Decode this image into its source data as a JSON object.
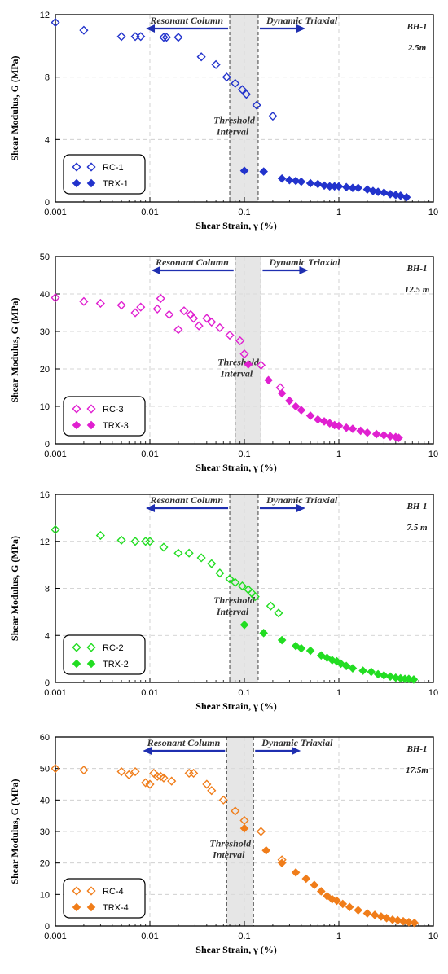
{
  "chart_data": [
    {
      "type": "scatter",
      "xscale": "log",
      "xlim": [
        0.001,
        10
      ],
      "ylim": [
        0,
        12
      ],
      "yticks": [
        0,
        4,
        8,
        12
      ],
      "xticks": [
        0.001,
        0.01,
        0.1,
        1,
        10
      ],
      "xtick_labels": [
        "0.001",
        "0.01",
        "0.1",
        "1",
        "10"
      ],
      "xlabel": "Shear Strain, γ (%)",
      "ylabel": "Shear Modulus, G (MPa)",
      "color": "#2233cc",
      "label_left": "Resonant Column",
      "label_right": "Dynamic Triaxial",
      "threshold_label": [
        "Threshold",
        "Interval"
      ],
      "threshold_range": [
        0.07,
        0.14
      ],
      "corner_text": [
        "BH-1",
        "2.5m"
      ],
      "grid": true,
      "legend": "bottom-left",
      "series": [
        {
          "name": "RC-1",
          "marker": "open-diamond",
          "x": [
            0.001,
            0.002,
            0.005,
            0.007,
            0.008,
            0.014,
            0.015,
            0.02,
            0.035,
            0.05,
            0.065,
            0.08,
            0.095,
            0.105,
            0.135,
            0.2
          ],
          "y": [
            11.5,
            11.0,
            10.6,
            10.6,
            10.6,
            10.55,
            10.55,
            10.55,
            9.3,
            8.8,
            8.0,
            7.6,
            7.2,
            6.9,
            6.2,
            5.5
          ]
        },
        {
          "name": "TRX-1",
          "marker": "filled-diamond",
          "x": [
            0.1,
            0.16,
            0.25,
            0.3,
            0.35,
            0.4,
            0.5,
            0.6,
            0.7,
            0.8,
            0.9,
            1.0,
            1.2,
            1.4,
            1.6,
            2.0,
            2.3,
            2.6,
            3.0,
            3.5,
            4.0,
            4.5,
            5.2
          ],
          "y": [
            2.0,
            1.95,
            1.5,
            1.4,
            1.35,
            1.3,
            1.2,
            1.15,
            1.05,
            1.0,
            1.0,
            1.0,
            0.95,
            0.9,
            0.9,
            0.8,
            0.7,
            0.65,
            0.6,
            0.5,
            0.45,
            0.4,
            0.3
          ]
        }
      ]
    },
    {
      "type": "scatter",
      "xscale": "log",
      "xlim": [
        0.001,
        10
      ],
      "ylim": [
        0,
        50
      ],
      "yticks": [
        0,
        10,
        20,
        30,
        40,
        50
      ],
      "xticks": [
        0.001,
        0.01,
        0.1,
        1,
        10
      ],
      "xtick_labels": [
        "0.001",
        "0.01",
        "0.1",
        "1",
        "10"
      ],
      "xlabel": "Shear Strain, γ (%)",
      "ylabel": "Shear Modulus, G (MPa)",
      "color": "#e020d0",
      "label_left": "Resonant Column",
      "label_right": "Dynamic Triaxial",
      "threshold_label": [
        "Threshold",
        "Interval"
      ],
      "threshold_range": [
        0.08,
        0.15
      ],
      "corner_text": [
        "BH-1",
        "12.5 m"
      ],
      "grid": true,
      "legend": "bottom-left",
      "series": [
        {
          "name": "RC-3",
          "marker": "open-diamond",
          "x": [
            0.001,
            0.002,
            0.003,
            0.005,
            0.007,
            0.008,
            0.012,
            0.013,
            0.016,
            0.02,
            0.023,
            0.027,
            0.029,
            0.033,
            0.04,
            0.045,
            0.055,
            0.07,
            0.09,
            0.1,
            0.15,
            0.24
          ],
          "y": [
            39,
            38,
            37.5,
            37,
            35,
            36.5,
            36,
            38.8,
            34.5,
            30.5,
            35.5,
            34.5,
            33.5,
            31.5,
            33.5,
            32.5,
            31,
            29,
            27.5,
            24,
            21,
            15
          ]
        },
        {
          "name": "TRX-3",
          "marker": "filled-diamond",
          "x": [
            0.11,
            0.18,
            0.25,
            0.3,
            0.35,
            0.4,
            0.5,
            0.6,
            0.7,
            0.8,
            0.9,
            1.0,
            1.2,
            1.4,
            1.7,
            2.0,
            2.5,
            3.0,
            3.5,
            4.0,
            4.3
          ],
          "y": [
            21.2,
            17,
            13.5,
            11.5,
            10,
            9,
            7.5,
            6.5,
            6,
            5.5,
            5,
            4.8,
            4.3,
            4,
            3.5,
            3,
            2.6,
            2.3,
            2,
            1.8,
            1.6
          ]
        }
      ]
    },
    {
      "type": "scatter",
      "xscale": "log",
      "xlim": [
        0.001,
        10
      ],
      "ylim": [
        0,
        16
      ],
      "yticks": [
        0,
        4,
        8,
        12,
        16
      ],
      "xticks": [
        0.001,
        0.01,
        0.1,
        1,
        10
      ],
      "xtick_labels": [
        "0.001",
        "0.01",
        "0.1",
        "1",
        "10"
      ],
      "xlabel": "Shear Strain, γ (%)",
      "ylabel": "Shear Modulus, G (MPa)",
      "color": "#22dd22",
      "label_left": "Resonant Column",
      "label_right": "Dynamic Triaxial",
      "threshold_label": [
        "Threshold",
        "Interval"
      ],
      "threshold_range": [
        0.07,
        0.14
      ],
      "corner_text": [
        "BH-1",
        "7.5 m"
      ],
      "grid": true,
      "legend": "bottom-left",
      "series": [
        {
          "name": "RC-2",
          "marker": "open-diamond",
          "x": [
            0.001,
            0.003,
            0.005,
            0.007,
            0.009,
            0.01,
            0.014,
            0.02,
            0.026,
            0.035,
            0.045,
            0.055,
            0.07,
            0.08,
            0.095,
            0.11,
            0.12,
            0.13,
            0.19,
            0.23
          ],
          "y": [
            13.0,
            12.5,
            12.1,
            12.0,
            12.0,
            12.0,
            11.5,
            11.0,
            11.0,
            10.6,
            10.1,
            9.3,
            8.8,
            8.5,
            8.2,
            7.9,
            7.6,
            7.3,
            6.5,
            5.9
          ]
        },
        {
          "name": "TRX-2",
          "marker": "filled-diamond",
          "x": [
            0.1,
            0.16,
            0.25,
            0.35,
            0.4,
            0.5,
            0.65,
            0.75,
            0.85,
            0.95,
            1.05,
            1.2,
            1.4,
            1.8,
            2.2,
            2.6,
            3.0,
            3.5,
            4.0,
            4.5,
            5.0,
            5.5,
            6.2
          ],
          "y": [
            4.9,
            4.2,
            3.6,
            3.1,
            2.9,
            2.7,
            2.3,
            2.1,
            1.9,
            1.8,
            1.6,
            1.4,
            1.2,
            1.0,
            0.9,
            0.7,
            0.6,
            0.5,
            0.4,
            0.35,
            0.3,
            0.3,
            0.25
          ]
        }
      ]
    },
    {
      "type": "scatter",
      "xscale": "log",
      "xlim": [
        0.001,
        10
      ],
      "ylim": [
        0,
        60
      ],
      "yticks": [
        0,
        10,
        20,
        30,
        40,
        50,
        60
      ],
      "xticks": [
        0.001,
        0.01,
        0.1,
        1,
        10
      ],
      "xtick_labels": [
        "0.001",
        "0.01",
        "0.1",
        "1",
        "10"
      ],
      "xlabel": "Shear Strain, γ (%)",
      "ylabel": "Shear Modulus, G (MPa)",
      "color": "#f07d1a",
      "label_left": "Resonant Column",
      "label_right": "Dynamic Triaxial",
      "threshold_label": [
        "Threshold",
        "Interval"
      ],
      "threshold_range": [
        0.065,
        0.125
      ],
      "corner_text": [
        "BH-1",
        "17.5m"
      ],
      "grid": true,
      "legend": "bottom-left",
      "series": [
        {
          "name": "RC-4",
          "marker": "open-diamond",
          "x": [
            0.001,
            0.002,
            0.005,
            0.006,
            0.007,
            0.009,
            0.01,
            0.011,
            0.012,
            0.013,
            0.014,
            0.017,
            0.026,
            0.029,
            0.04,
            0.045,
            0.06,
            0.08,
            0.1,
            0.15,
            0.25
          ],
          "y": [
            50,
            49.5,
            49,
            48,
            49,
            45.5,
            45,
            48.5,
            47.5,
            47.5,
            47,
            46,
            48.5,
            48.5,
            45,
            43,
            40,
            36.5,
            33.5,
            30,
            21
          ]
        },
        {
          "name": "TRX-4",
          "marker": "filled-diamond",
          "x": [
            0.1,
            0.17,
            0.25,
            0.35,
            0.45,
            0.55,
            0.65,
            0.75,
            0.85,
            0.95,
            1.1,
            1.3,
            1.6,
            2.0,
            2.4,
            2.8,
            3.2,
            3.7,
            4.2,
            4.8,
            5.5,
            6.3
          ],
          "y": [
            31,
            24,
            20,
            17,
            15,
            13,
            11,
            9.5,
            8.5,
            8,
            7,
            6,
            5,
            4,
            3.5,
            3,
            2.5,
            2,
            1.8,
            1.5,
            1.2,
            1
          ]
        }
      ]
    }
  ]
}
